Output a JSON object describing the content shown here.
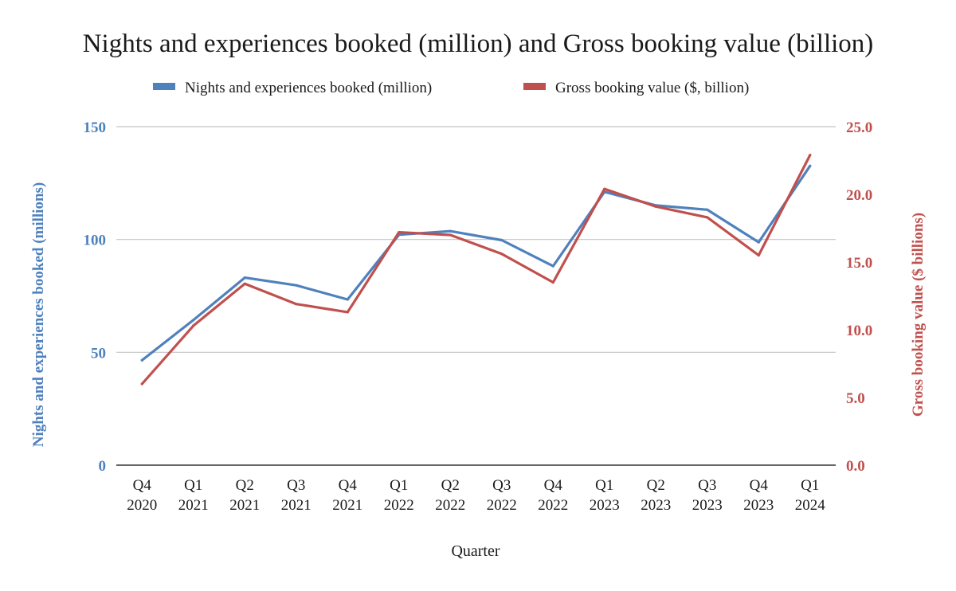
{
  "chart_data": {
    "type": "line",
    "title": "Nights and experiences booked (million) and Gross booking value (billion)",
    "xlabel": "Quarter",
    "ylabel_left": "Nights and experiences booked (millions)",
    "ylabel_right": "Gross booking value ($ billions)",
    "categories": [
      [
        "Q4",
        "2020"
      ],
      [
        "Q1",
        "2021"
      ],
      [
        "Q2",
        "2021"
      ],
      [
        "Q3",
        "2021"
      ],
      [
        "Q4",
        "2021"
      ],
      [
        "Q1",
        "2022"
      ],
      [
        "Q2",
        "2022"
      ],
      [
        "Q3",
        "2022"
      ],
      [
        "Q4",
        "2022"
      ],
      [
        "Q1",
        "2023"
      ],
      [
        "Q2",
        "2023"
      ],
      [
        "Q3",
        "2023"
      ],
      [
        "Q4",
        "2023"
      ],
      [
        "Q1",
        "2024"
      ]
    ],
    "left_axis": {
      "ylim": [
        0,
        150
      ],
      "ticks": [
        0,
        50,
        100,
        150
      ],
      "tick_labels": [
        "0",
        "50",
        "100",
        "150"
      ]
    },
    "right_axis": {
      "ylim": [
        0,
        25
      ],
      "ticks": [
        0,
        5,
        10,
        15,
        20,
        25
      ],
      "tick_labels": [
        "0.0",
        "5.0",
        "10.0",
        "15.0",
        "20.0",
        "25.0"
      ]
    },
    "series": [
      {
        "name": "Nights and experiences booked (million)",
        "axis": "left",
        "color": "#4f81bd",
        "values": [
          46.5,
          64.3,
          83.1,
          79.7,
          73.4,
          102.1,
          103.7,
          99.7,
          88.2,
          121.1,
          115.1,
          113.2,
          98.8,
          132.6
        ]
      },
      {
        "name": "Gross booking value ($, billion)",
        "axis": "right",
        "color": "#c0504d",
        "values": [
          6.0,
          10.3,
          13.4,
          11.9,
          11.3,
          17.2,
          17.0,
          15.6,
          13.5,
          20.4,
          19.1,
          18.3,
          15.5,
          22.9
        ]
      }
    ],
    "grid": true,
    "legend_position": "top-center"
  }
}
